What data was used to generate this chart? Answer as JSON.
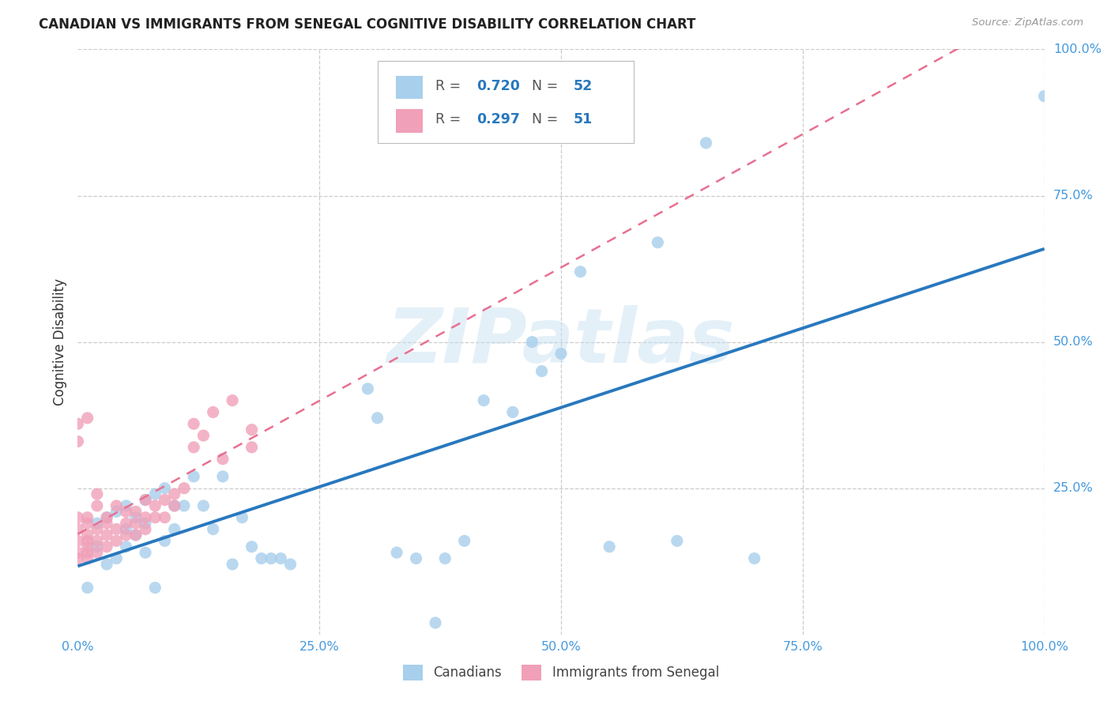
{
  "title": "CANADIAN VS IMMIGRANTS FROM SENEGAL COGNITIVE DISABILITY CORRELATION CHART",
  "source": "Source: ZipAtlas.com",
  "ylabel": "Cognitive Disability",
  "watermark": "ZIPatlas",
  "canadian_R": 0.72,
  "canadian_N": 52,
  "senegal_R": 0.297,
  "senegal_N": 51,
  "canadian_color": "#A8CFEC",
  "senegal_color": "#F0A0B8",
  "canadian_line_color": "#2878BE",
  "senegal_line_color": "#E87090",
  "background_color": "#FFFFFF",
  "canadians_x": [
    0.01,
    0.02,
    0.02,
    0.03,
    0.03,
    0.04,
    0.04,
    0.05,
    0.05,
    0.05,
    0.06,
    0.06,
    0.07,
    0.07,
    0.07,
    0.08,
    0.08,
    0.09,
    0.09,
    0.1,
    0.1,
    0.11,
    0.12,
    0.13,
    0.14,
    0.15,
    0.16,
    0.17,
    0.18,
    0.19,
    0.2,
    0.21,
    0.22,
    0.3,
    0.31,
    0.33,
    0.35,
    0.37,
    0.38,
    0.4,
    0.42,
    0.45,
    0.47,
    0.48,
    0.5,
    0.52,
    0.55,
    0.6,
    0.62,
    0.65,
    0.7,
    1.0
  ],
  "canadians_y": [
    0.08,
    0.19,
    0.15,
    0.2,
    0.12,
    0.21,
    0.13,
    0.22,
    0.18,
    0.15,
    0.2,
    0.17,
    0.23,
    0.19,
    0.14,
    0.24,
    0.08,
    0.25,
    0.16,
    0.22,
    0.18,
    0.22,
    0.27,
    0.22,
    0.18,
    0.27,
    0.12,
    0.2,
    0.15,
    0.13,
    0.13,
    0.13,
    0.12,
    0.42,
    0.37,
    0.14,
    0.13,
    0.02,
    0.13,
    0.16,
    0.4,
    0.38,
    0.5,
    0.45,
    0.48,
    0.62,
    0.15,
    0.67,
    0.16,
    0.84,
    0.13,
    0.92
  ],
  "senegal_x": [
    0.0,
    0.0,
    0.0,
    0.0,
    0.0,
    0.01,
    0.01,
    0.01,
    0.01,
    0.01,
    0.01,
    0.01,
    0.02,
    0.02,
    0.02,
    0.02,
    0.02,
    0.03,
    0.03,
    0.03,
    0.03,
    0.04,
    0.04,
    0.04,
    0.05,
    0.05,
    0.05,
    0.06,
    0.06,
    0.06,
    0.07,
    0.07,
    0.07,
    0.08,
    0.08,
    0.09,
    0.09,
    0.1,
    0.1,
    0.11,
    0.12,
    0.12,
    0.13,
    0.14,
    0.15,
    0.16,
    0.18,
    0.18,
    0.0,
    0.0,
    0.01
  ],
  "senegal_y": [
    0.2,
    0.18,
    0.16,
    0.14,
    0.13,
    0.19,
    0.17,
    0.16,
    0.15,
    0.14,
    0.13,
    0.2,
    0.18,
    0.16,
    0.14,
    0.22,
    0.24,
    0.19,
    0.17,
    0.15,
    0.2,
    0.18,
    0.16,
    0.22,
    0.21,
    0.19,
    0.17,
    0.21,
    0.19,
    0.17,
    0.23,
    0.2,
    0.18,
    0.22,
    0.2,
    0.23,
    0.2,
    0.24,
    0.22,
    0.25,
    0.32,
    0.36,
    0.34,
    0.38,
    0.3,
    0.4,
    0.32,
    0.35,
    0.36,
    0.33,
    0.37
  ],
  "xlim": [
    0.0,
    1.0
  ],
  "ylim": [
    0.0,
    1.0
  ],
  "legend_R_canadian": "0.720",
  "legend_N_canadian": "52",
  "legend_R_senegal": "0.297",
  "legend_N_senegal": "51"
}
